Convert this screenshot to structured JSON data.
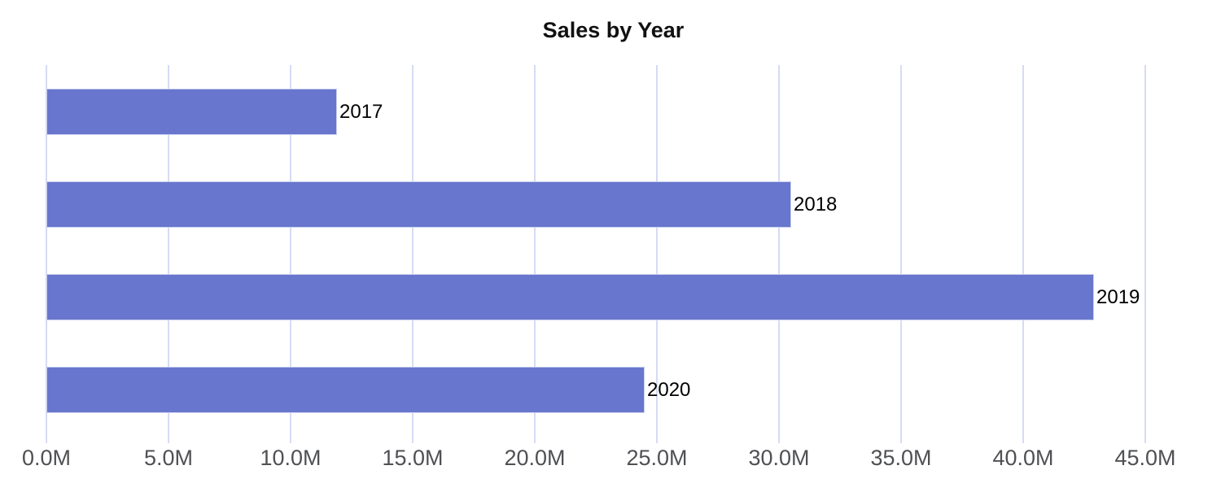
{
  "chart_data": {
    "type": "bar",
    "orientation": "horizontal",
    "title": "Sales by Year",
    "categories": [
      "2017",
      "2018",
      "2019",
      "2020"
    ],
    "values": [
      11.9,
      30.5,
      42.9,
      24.5
    ],
    "value_unit": "M",
    "xlabel": "",
    "ylabel": "",
    "xlim": [
      0,
      45
    ],
    "xtick_values": [
      0,
      5,
      10,
      15,
      20,
      25,
      30,
      35,
      40,
      45
    ],
    "xtick_labels": [
      "0.0M",
      "5.0M",
      "10.0M",
      "15.0M",
      "20.0M",
      "25.0M",
      "30.0M",
      "35.0M",
      "40.0M",
      "45.0M"
    ],
    "grid": "vertical-only",
    "legend": "none",
    "bar_labels": [
      "2017",
      "2018",
      "2019",
      "2020"
    ],
    "bar_label_position": "outside-end",
    "colors": {
      "bar_fill": "#6876cd",
      "bar_edge": "#c9d0ee",
      "gridline": "#d6dbf4",
      "tick_text": "#4f5054",
      "title_text": "#111111",
      "bar_label_text": "#000000",
      "background": "#ffffff"
    }
  }
}
